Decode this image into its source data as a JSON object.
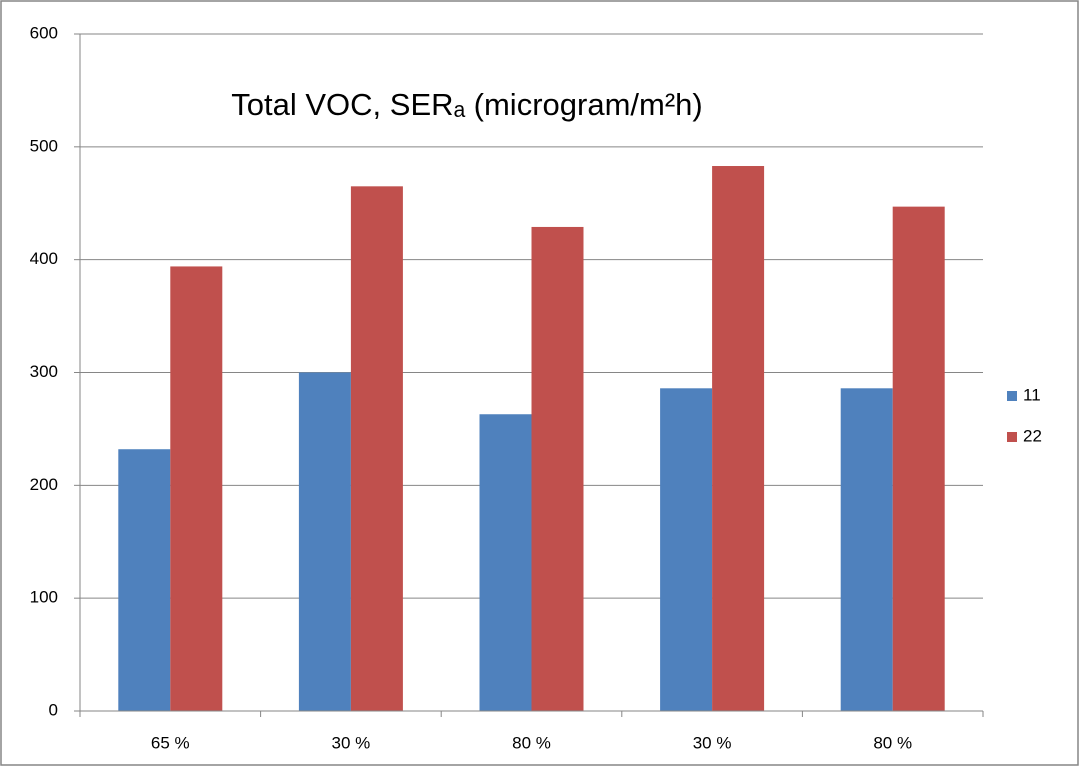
{
  "chart_data": {
    "type": "bar",
    "title": "Total VOC, SERₐ (microgram/m²h)",
    "categories": [
      "65 %",
      "30 %",
      "80 %",
      "30 %",
      "80 %"
    ],
    "series": [
      {
        "name": "11",
        "color": "#4f81bd",
        "values": [
          232,
          300,
          263,
          286,
          286
        ]
      },
      {
        "name": "22",
        "color": "#c0504d",
        "values": [
          394,
          465,
          429,
          483,
          447
        ]
      }
    ],
    "ylim": [
      0,
      600
    ],
    "yticks": [
      0,
      100,
      200,
      300,
      400,
      500,
      600
    ],
    "grid": true,
    "legend_position": "right"
  }
}
